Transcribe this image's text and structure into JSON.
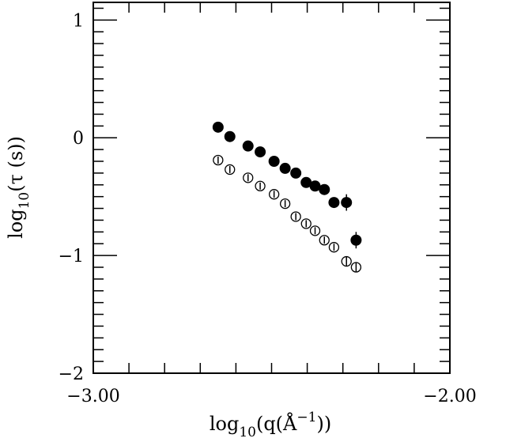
{
  "chart_data": {
    "type": "scatter",
    "xlabel": {
      "prefix": "log",
      "sub": "10",
      "open": "(q(",
      "unit": "Å",
      "sup": "−1",
      "close": "))"
    },
    "ylabel": {
      "prefix": "log",
      "sub": "10",
      "body": "(τ  (s))"
    },
    "xlim": [
      -3.0,
      -2.0
    ],
    "ylim": [
      -2.0,
      1.15
    ],
    "x_ticks": [
      {
        "value": -3.0,
        "label": "−3.00"
      },
      {
        "value": -2.0,
        "label": "−2.00"
      }
    ],
    "y_ticks": [
      {
        "value": 1,
        "label": "1"
      },
      {
        "value": 0,
        "label": "0"
      },
      {
        "value": -1,
        "label": "−1"
      },
      {
        "value": -2,
        "label": "−2"
      }
    ],
    "series": [
      {
        "marker": "filled-circle",
        "color": "#000000",
        "points": [
          {
            "x": -2.65,
            "y": 0.09,
            "err": 0.03
          },
          {
            "x": -2.617,
            "y": 0.01,
            "err": 0.03
          },
          {
            "x": -2.566,
            "y": -0.07,
            "err": 0.03
          },
          {
            "x": -2.532,
            "y": -0.12,
            "err": 0.03
          },
          {
            "x": -2.493,
            "y": -0.2,
            "err": 0.03
          },
          {
            "x": -2.462,
            "y": -0.26,
            "err": 0.03
          },
          {
            "x": -2.432,
            "y": -0.3,
            "err": 0.03
          },
          {
            "x": -2.403,
            "y": -0.38,
            "err": 0.03
          },
          {
            "x": -2.378,
            "y": -0.41,
            "err": 0.03
          },
          {
            "x": -2.352,
            "y": -0.44,
            "err": 0.03
          },
          {
            "x": -2.325,
            "y": -0.55,
            "err": 0.03
          },
          {
            "x": -2.29,
            "y": -0.55,
            "err": 0.07
          },
          {
            "x": -2.263,
            "y": -0.87,
            "err": 0.07
          }
        ]
      },
      {
        "marker": "open-circle",
        "color": "#000000",
        "points": [
          {
            "x": -2.65,
            "y": -0.19,
            "err": 0.03
          },
          {
            "x": -2.617,
            "y": -0.27,
            "err": 0.03
          },
          {
            "x": -2.566,
            "y": -0.34,
            "err": 0.03
          },
          {
            "x": -2.532,
            "y": -0.41,
            "err": 0.03
          },
          {
            "x": -2.493,
            "y": -0.48,
            "err": 0.03
          },
          {
            "x": -2.462,
            "y": -0.56,
            "err": 0.03
          },
          {
            "x": -2.432,
            "y": -0.67,
            "err": 0.03
          },
          {
            "x": -2.403,
            "y": -0.73,
            "err": 0.03
          },
          {
            "x": -2.378,
            "y": -0.79,
            "err": 0.03
          },
          {
            "x": -2.352,
            "y": -0.87,
            "err": 0.03
          },
          {
            "x": -2.325,
            "y": -0.93,
            "err": 0.03
          },
          {
            "x": -2.29,
            "y": -1.05,
            "err": 0.04
          },
          {
            "x": -2.263,
            "y": -1.1,
            "err": 0.04
          }
        ]
      }
    ],
    "grid": false,
    "legend": "none"
  }
}
